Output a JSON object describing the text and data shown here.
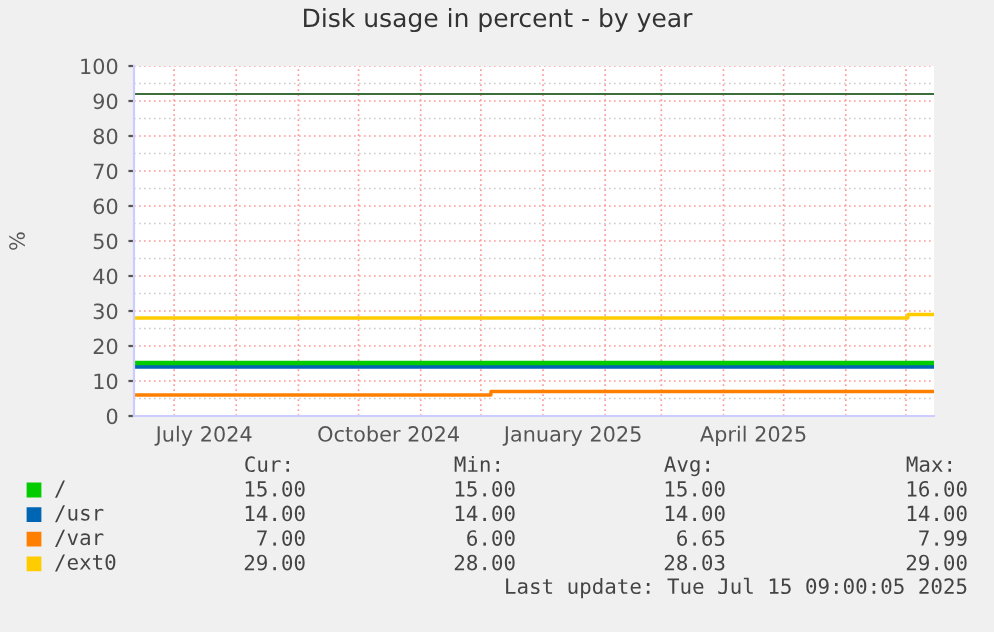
{
  "chart_data": {
    "type": "line",
    "title": "Disk usage in percent - by year",
    "ylabel": "%",
    "xlim": [
      "2024-06-11",
      "2025-07-15"
    ],
    "xticks": [
      {
        "value": "2024-07-01",
        "label": null
      },
      {
        "value": "2024-07-16",
        "label": "July 2024"
      },
      {
        "value": "2024-08-01",
        "label": null
      },
      {
        "value": "2024-09-01",
        "label": null
      },
      {
        "value": "2024-10-01",
        "label": null
      },
      {
        "value": "2024-10-16",
        "label": "October 2024"
      },
      {
        "value": "2024-11-01",
        "label": null
      },
      {
        "value": "2024-12-01",
        "label": null
      },
      {
        "value": "2025-01-01",
        "label": null
      },
      {
        "value": "2025-01-16",
        "label": "January 2025"
      },
      {
        "value": "2025-02-01",
        "label": null
      },
      {
        "value": "2025-03-01",
        "label": null
      },
      {
        "value": "2025-04-01",
        "label": null
      },
      {
        "value": "2025-04-16",
        "label": "April 2025"
      },
      {
        "value": "2025-05-01",
        "label": null
      },
      {
        "value": "2025-06-01",
        "label": null
      },
      {
        "value": "2025-07-01",
        "label": null
      }
    ],
    "ylim": [
      0,
      100
    ],
    "yticks": [
      0,
      10,
      20,
      30,
      40,
      50,
      60,
      70,
      80,
      90,
      100
    ],
    "grid": true,
    "legend": "bottom",
    "series": [
      {
        "name": "/",
        "color": "#00cc00",
        "x": [
          "2024-06-11",
          "2025-07-15"
        ],
        "values": [
          15,
          15
        ]
      },
      {
        "name": "/usr",
        "color": "#0066b3",
        "x": [
          "2024-06-11",
          "2025-07-15"
        ],
        "values": [
          14,
          14
        ]
      },
      {
        "name": "/var",
        "color": "#ff8000",
        "x": [
          "2024-06-11",
          "2024-12-06",
          "2024-12-06",
          "2025-07-15"
        ],
        "values": [
          6,
          6,
          7,
          7
        ]
      },
      {
        "name": "/ext0",
        "color": "#ffcc00",
        "x": [
          "2024-06-11",
          "2025-07-02",
          "2025-07-02",
          "2025-07-15"
        ],
        "values": [
          28,
          28,
          29,
          29
        ]
      }
    ],
    "ref_lines": [
      {
        "axis": "y",
        "value": 92,
        "label": null,
        "color": "#3c6e3c"
      }
    ],
    "annotations": [
      "Cur:",
      "Min:",
      "Avg:",
      "Max:",
      "15.00",
      "15.00",
      "15.00",
      "16.00",
      "14.00",
      "14.00",
      "14.00",
      "14.00",
      "7.00",
      "6.00",
      "6.65",
      "7.99",
      "29.00",
      "28.00",
      "28.03",
      "29.00",
      "Last update: Tue Jul 15 09:00:05 2025"
    ]
  }
}
